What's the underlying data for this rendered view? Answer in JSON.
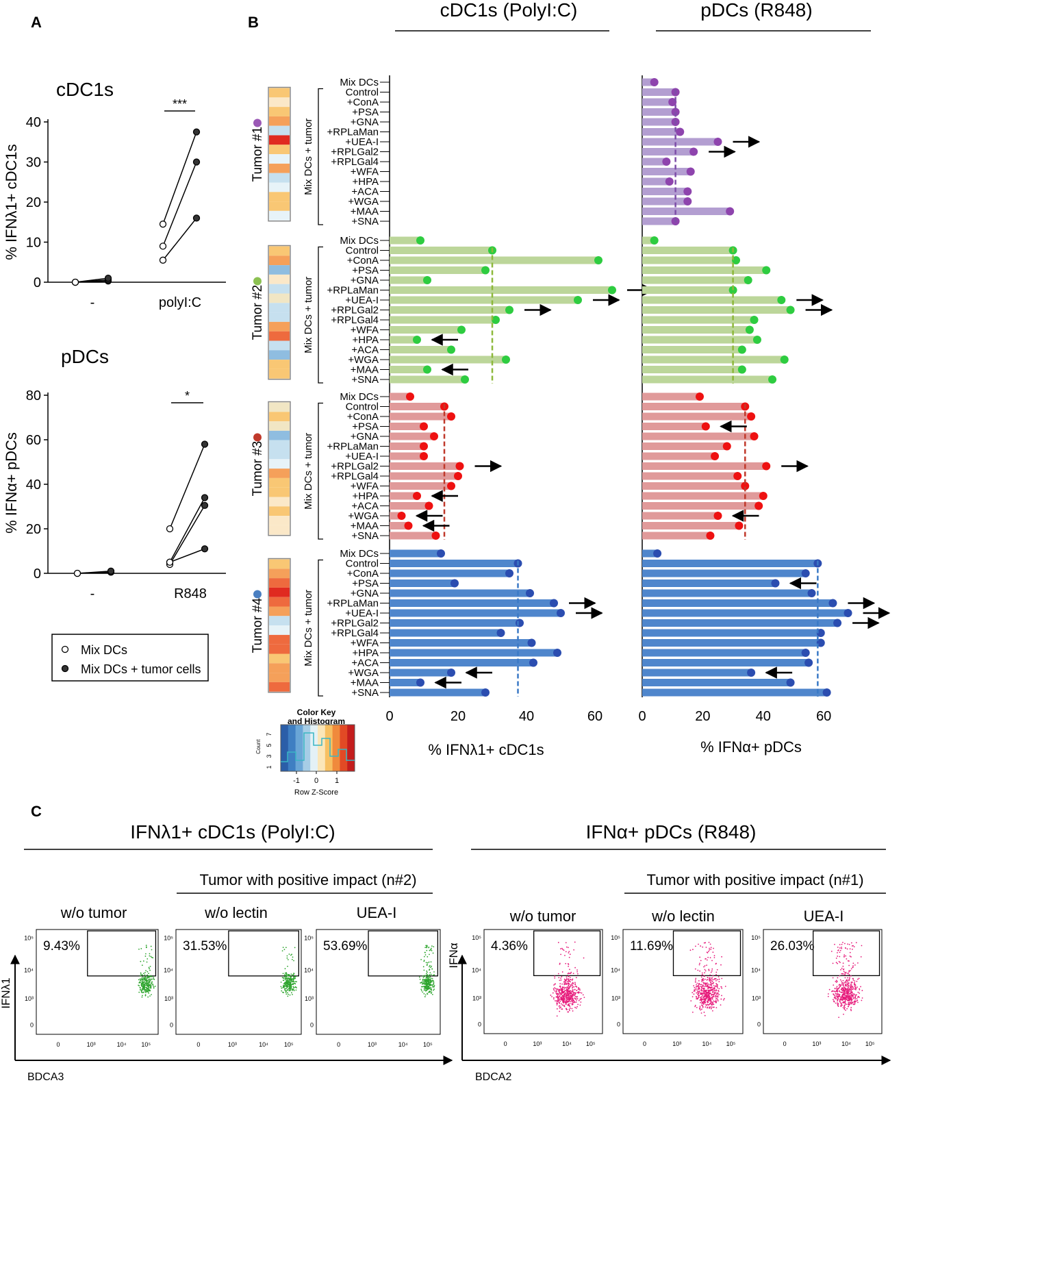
{
  "figure": {
    "panel_a_label": "A",
    "panel_b_label": "B",
    "panel_c_label": "C"
  },
  "panel_a": {
    "legend": {
      "open_label": "Mix DCs",
      "filled_label": "Mix DCs + tumor cells"
    },
    "colors": {
      "line": "#111111",
      "filled": "#333333"
    }
  },
  "panel_b": {
    "header_cdc1": "cDC1s (PolyI:C)",
    "header_pdc": "pDCs (R848)",
    "group_label": "Mix DCs + tumor",
    "tumor_names": [
      "Tumor #1",
      "Tumor #2",
      "Tumor #3",
      "Tumor #4"
    ],
    "tumor_colors": [
      "#9b59b6",
      "#8cc152",
      "#c0392b",
      "#4a7fc1"
    ],
    "bar_colors": [
      "#b39ed1",
      "#bcd69a",
      "#e09a9a",
      "#4f86cc"
    ],
    "dot_colors": [
      "#8e44ad",
      "#2ecc40",
      "#ee1111",
      "#2b4db0"
    ],
    "dash_colors": [
      "#7d4ea8",
      "#8db83a",
      "#c0392b",
      "#3a79c6"
    ],
    "row_labels": [
      "Mix DCs",
      "Control",
      "+ConA",
      "+PSA",
      "+GNA",
      "+RPLaMan",
      "+UEA-I",
      "+RPLGal2",
      "+RPLGal4",
      "+WFA",
      "+HPA",
      "+ACA",
      "+WGA",
      "+MAA",
      "+SNA"
    ],
    "heat_palette": [
      "#fbe8c8",
      "#f9c774",
      "#f5a05a",
      "#ee6a3e",
      "#e02a20",
      "#c6e0ef",
      "#8fbde0",
      "#e7f3f8",
      "#f1e6c4"
    ],
    "heatmap": [
      [
        1,
        0,
        1,
        2,
        5,
        4,
        1,
        7,
        2,
        5,
        7,
        1,
        1,
        7
      ],
      [
        1,
        2,
        6,
        0,
        5,
        8,
        5,
        5,
        2,
        3,
        5,
        6,
        1,
        1
      ],
      [
        8,
        1,
        8,
        6,
        5,
        5,
        7,
        2,
        1,
        1,
        0,
        1,
        0,
        0
      ],
      [
        1,
        2,
        3,
        4,
        3,
        2,
        5,
        7,
        3,
        3,
        1,
        2,
        2,
        3
      ]
    ],
    "color_key": {
      "title_line1": "Color Key",
      "title_line2": "and Histogram",
      "count_label": "Count",
      "count_ticks": [
        "1",
        "3",
        "5",
        "7"
      ],
      "z_ticks": [
        "-1",
        "0",
        "1"
      ],
      "xlabel": "Row Z-Score"
    }
  },
  "panel_c": {
    "left_title": "IFNλ1+ cDC1s (PolyI:C)",
    "right_title": "IFNα+ pDCs (R848)",
    "left_subtitle": "Tumor with positive impact (n#2)",
    "right_subtitle": "Tumor with positive impact (n#1)",
    "plot_titles": [
      "w/o tumor",
      "w/o lectin",
      "UEA-I",
      "w/o tumor",
      "w/o lectin",
      "UEA-I"
    ],
    "percentages": [
      "9.43%",
      "31.53%",
      "53.69%",
      "4.36%",
      "11.69%",
      "26.03%"
    ],
    "left_xlabel": "BDCA3",
    "right_xlabel": "BDCA2",
    "left_ylabel": "IFNλ1",
    "right_ylabel": "IFNα",
    "x_ticks": [
      "0",
      "10³",
      "10⁴",
      "10⁵"
    ],
    "y_ticks_main": [
      "10³",
      "10⁴",
      "10⁵"
    ],
    "y_tick_zero": "0",
    "green": "#2ea52e",
    "magenta": "#e6197a"
  },
  "chart_data": [
    {
      "id": "A-top",
      "type": "scatter",
      "title": "cDC1s",
      "ylabel": "% IFNλ1+ cDC1s",
      "categories": [
        "-",
        "polyI:C"
      ],
      "ylim": [
        0,
        40
      ],
      "yticks": [
        0,
        10,
        20,
        30,
        40
      ],
      "significance": "***",
      "pairs": [
        {
          "category": "-",
          "open": 0,
          "filled": 0.3
        },
        {
          "category": "-",
          "open": 0,
          "filled": 0.6
        },
        {
          "category": "-",
          "open": 0,
          "filled": 1.0
        },
        {
          "category": "polyI:C",
          "open": 14.5,
          "filled": 37.5
        },
        {
          "category": "polyI:C",
          "open": 9.0,
          "filled": 30.0
        },
        {
          "category": "polyI:C",
          "open": 5.5,
          "filled": 16.0
        }
      ]
    },
    {
      "id": "A-bottom",
      "type": "scatter",
      "title": "pDCs",
      "ylabel": "% IFNα+ pDCs",
      "categories": [
        "-",
        "R848"
      ],
      "ylim": [
        0,
        80
      ],
      "yticks": [
        0,
        20,
        40,
        60,
        80
      ],
      "significance": "*",
      "pairs": [
        {
          "category": "-",
          "open": 0,
          "filled": 0.5
        },
        {
          "category": "-",
          "open": 0,
          "filled": 1.0
        },
        {
          "category": "R848",
          "open": 20.0,
          "filled": 58.0
        },
        {
          "category": "R848",
          "open": 5.0,
          "filled": 34.0
        },
        {
          "category": "R848",
          "open": 4.0,
          "filled": 30.5
        },
        {
          "category": "R848",
          "open": 5.0,
          "filled": 11.0
        }
      ]
    },
    {
      "id": "B-cdc1",
      "type": "bar",
      "title": "cDC1s (PolyI:C)",
      "xlabel": "% IFNλ1+ cDC1s",
      "xlim": [
        0,
        72
      ],
      "xticks": [
        0,
        20,
        40,
        60
      ],
      "categories": [
        "Mix DCs",
        "Control",
        "+ConA",
        "+PSA",
        "+GNA",
        "+RPLaMan",
        "+UEA-I",
        "+RPLGal2",
        "+RPLGal4",
        "+WFA",
        "+HPA",
        "+ACA",
        "+WGA",
        "+MAA",
        "+SNA"
      ],
      "series": [
        {
          "name": "Tumor #1",
          "values": [
            null,
            null,
            null,
            null,
            null,
            null,
            null,
            null,
            null,
            null,
            null,
            null,
            null,
            null,
            null
          ],
          "control_line": null,
          "arrows": []
        },
        {
          "name": "Tumor #2",
          "values": [
            9,
            30,
            61,
            28,
            11,
            65,
            55,
            35,
            31,
            21,
            8,
            18,
            34,
            11,
            22
          ],
          "control_line": 30,
          "arrows": [
            {
              "row": "+RPLaMan",
              "direction": "right"
            },
            {
              "row": "+UEA-I",
              "direction": "right"
            },
            {
              "row": "+RPLGal2",
              "direction": "right"
            },
            {
              "row": "+HPA",
              "direction": "left"
            },
            {
              "row": "+MAA",
              "direction": "left"
            }
          ]
        },
        {
          "name": "Tumor #3",
          "values": [
            6,
            16,
            18,
            10,
            13,
            10,
            10,
            20.5,
            20,
            18,
            8,
            11.5,
            3.5,
            5.5,
            13.5
          ],
          "control_line": 16,
          "arrows": [
            {
              "row": "+RPLGal2",
              "direction": "right"
            },
            {
              "row": "+HPA",
              "direction": "left"
            },
            {
              "row": "+WGA",
              "direction": "left"
            },
            {
              "row": "+MAA",
              "direction": "left"
            }
          ]
        },
        {
          "name": "Tumor #4",
          "values": [
            15,
            37.5,
            35,
            19,
            41,
            48,
            50,
            38,
            32.5,
            41.5,
            49,
            42,
            18,
            9,
            28
          ],
          "control_line": 37.5,
          "arrows": [
            {
              "row": "+RPLaMan",
              "direction": "right"
            },
            {
              "row": "+UEA-I",
              "direction": "right"
            },
            {
              "row": "+WGA",
              "direction": "left"
            },
            {
              "row": "+MAA",
              "direction": "left"
            }
          ]
        }
      ]
    },
    {
      "id": "B-pdc",
      "type": "bar",
      "title": "pDCs (R848)",
      "xlabel": "% IFNα+ pDCs",
      "xlim": [
        0,
        70
      ],
      "xticks": [
        0,
        20,
        40,
        60
      ],
      "categories": [
        "Mix DCs",
        "Control",
        "+ConA",
        "+PSA",
        "+GNA",
        "+RPLaMan",
        "+UEA-I",
        "+RPLGal2",
        "+RPLGal4",
        "+WFA",
        "+HPA",
        "+ACA",
        "+WGA",
        "+MAA",
        "+SNA"
      ],
      "series": [
        {
          "name": "Tumor #1",
          "values": [
            4,
            11,
            10,
            11,
            11,
            12.5,
            25,
            17,
            8,
            16,
            9,
            15,
            15,
            29,
            11
          ],
          "control_line": 11,
          "arrows": [
            {
              "row": "+UEA-I",
              "direction": "right"
            },
            {
              "row": "+RPLGal2",
              "direction": "right"
            }
          ]
        },
        {
          "name": "Tumor #2",
          "values": [
            4,
            30,
            31,
            41,
            35,
            30,
            46,
            49,
            37,
            35.5,
            38,
            33,
            47,
            33,
            43
          ],
          "control_line": 30,
          "arrows": [
            {
              "row": "+UEA-I",
              "direction": "right"
            },
            {
              "row": "+RPLGal2",
              "direction": "right"
            }
          ]
        },
        {
          "name": "Tumor #3",
          "values": [
            19,
            34,
            36,
            21,
            37,
            28,
            24,
            41,
            31.5,
            34,
            40,
            38.5,
            25,
            32,
            22.5
          ],
          "control_line": 34,
          "arrows": [
            {
              "row": "+PSA",
              "direction": "left"
            },
            {
              "row": "+RPLGal2",
              "direction": "right"
            },
            {
              "row": "+WGA",
              "direction": "left"
            }
          ]
        },
        {
          "name": "Tumor #4",
          "values": [
            5,
            58,
            54,
            44,
            56,
            63,
            68,
            64.5,
            59,
            59,
            54,
            55,
            36,
            49,
            61
          ],
          "control_line": 58,
          "arrows": [
            {
              "row": "+PSA",
              "direction": "left"
            },
            {
              "row": "+RPLaMan",
              "direction": "right"
            },
            {
              "row": "+UEA-I",
              "direction": "right"
            },
            {
              "row": "+RPLGal2",
              "direction": "right"
            },
            {
              "row": "+WGA",
              "direction": "left"
            }
          ]
        }
      ]
    },
    {
      "id": "C-flow",
      "type": "scatter",
      "title": "Flow cytometry gating",
      "plots": [
        {
          "title": "w/o tumor",
          "gate_percent": 9.43,
          "x": "BDCA3",
          "y": "IFNλ1"
        },
        {
          "title": "w/o lectin",
          "gate_percent": 31.53,
          "x": "BDCA3",
          "y": "IFNλ1"
        },
        {
          "title": "UEA-I",
          "gate_percent": 53.69,
          "x": "BDCA3",
          "y": "IFNλ1"
        },
        {
          "title": "w/o tumor",
          "gate_percent": 4.36,
          "x": "BDCA2",
          "y": "IFNα"
        },
        {
          "title": "w/o lectin",
          "gate_percent": 11.69,
          "x": "BDCA2",
          "y": "IFNα"
        },
        {
          "title": "UEA-I",
          "gate_percent": 26.03,
          "x": "BDCA2",
          "y": "IFNα"
        }
      ]
    }
  ]
}
